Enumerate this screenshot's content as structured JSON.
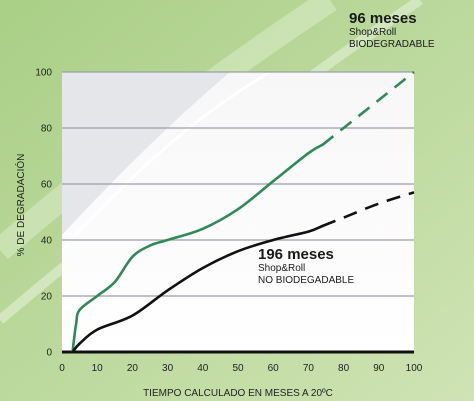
{
  "chart_data": {
    "type": "line",
    "xlabel": "TIEMPO CALCULADO EN MESES A 20ºC",
    "ylabel": "% DE DEGRADACIÓN",
    "xlim": [
      0,
      100
    ],
    "ylim": [
      0,
      100
    ],
    "x_ticks": [
      0,
      10,
      20,
      30,
      40,
      50,
      60,
      70,
      80,
      90,
      100
    ],
    "y_ticks": [
      0,
      20,
      40,
      60,
      80,
      100
    ],
    "grid": true,
    "series": [
      {
        "name": "Shop&Roll BIODEGRADABLE",
        "color": "#2e8b57",
        "solid": [
          [
            3,
            0
          ],
          [
            4,
            10
          ],
          [
            5,
            15
          ],
          [
            10,
            20
          ],
          [
            15,
            25
          ],
          [
            20,
            34
          ],
          [
            25,
            38
          ],
          [
            30,
            40
          ],
          [
            40,
            44
          ],
          [
            50,
            51
          ],
          [
            60,
            61
          ],
          [
            70,
            71
          ],
          [
            74,
            74
          ]
        ],
        "dashed": [
          [
            74,
            74
          ],
          [
            80,
            80
          ],
          [
            90,
            90
          ],
          [
            100,
            100
          ]
        ]
      },
      {
        "name": "Shop&Roll NO BIODEGADABLE",
        "color": "#111111",
        "solid": [
          [
            3,
            0
          ],
          [
            5,
            3
          ],
          [
            10,
            8
          ],
          [
            20,
            13
          ],
          [
            30,
            22
          ],
          [
            40,
            30
          ],
          [
            50,
            36
          ],
          [
            60,
            40
          ],
          [
            70,
            43
          ],
          [
            74,
            45
          ]
        ],
        "dashed": [
          [
            74,
            45
          ],
          [
            80,
            48
          ],
          [
            90,
            53
          ],
          [
            100,
            57
          ]
        ]
      }
    ],
    "annotations": [
      {
        "title": "96 meses",
        "line1": "Shop&Roll",
        "line2": "BIODEGRADABLE"
      },
      {
        "title": "196 meses",
        "line1": "Shop&Roll",
        "line2": "NO BIODEGADABLE"
      }
    ]
  }
}
